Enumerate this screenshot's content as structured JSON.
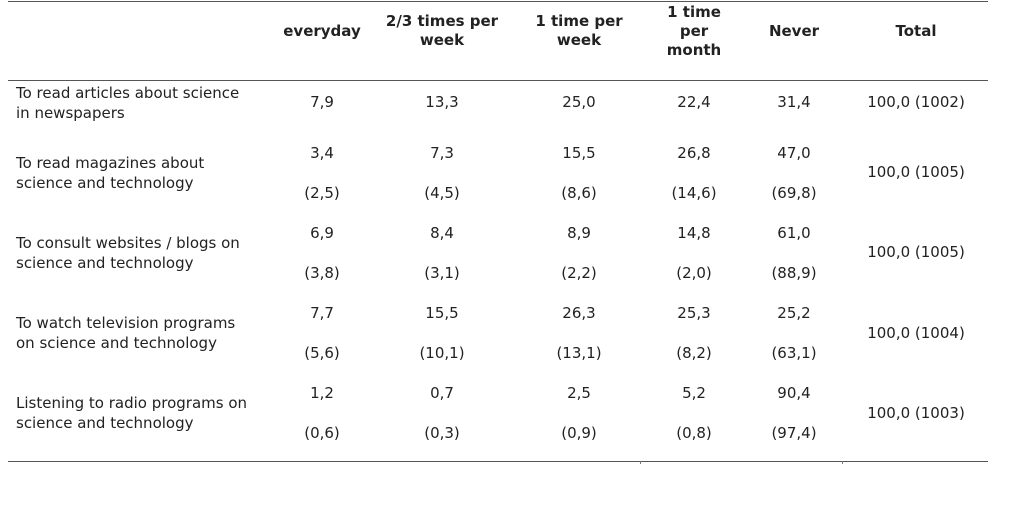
{
  "headers": [
    "everyday",
    "2/3 times per\nweek",
    "1 time per\nweek",
    "1 time\nper\nmonth",
    "Never",
    "Total"
  ],
  "rows": [
    {
      "label": "To read articles about science\nin newspapers",
      "values": [
        "7,9",
        "13,3",
        "25,0",
        "22,4",
        "31,4"
      ],
      "secondary": null,
      "total": "100,0 (1002)"
    },
    {
      "label": "To read magazines about\nscience and technology",
      "values": [
        "3,4",
        "7,3",
        "15,5",
        "26,8",
        "47,0"
      ],
      "secondary": [
        "(2,5)",
        "(4,5)",
        "(8,6)",
        "(14,6)",
        "(69,8)"
      ],
      "total": "100,0 (1005)"
    },
    {
      "label": "To consult websites / blogs on\nscience and technology",
      "values": [
        "6,9",
        "8,4",
        "8,9",
        "14,8",
        "61,0"
      ],
      "secondary": [
        "(3,8)",
        "(3,1)",
        "(2,2)",
        "(2,0)",
        "(88,9)"
      ],
      "total": "100,0 (1005)"
    },
    {
      "label": "To watch television programs\non science and technology",
      "values": [
        "7,7",
        "15,5",
        "26,3",
        "25,3",
        "25,2"
      ],
      "secondary": [
        "(5,6)",
        "(10,1)",
        "(13,1)",
        "(8,2)",
        "(63,1)"
      ],
      "total": "100,0 (1004)"
    },
    {
      "label": "Listening to radio programs on\nscience and technology",
      "values": [
        "1,2",
        "0,7",
        "2,5",
        "5,2",
        "90,4"
      ],
      "secondary": [
        "(0,6)",
        "(0,3)",
        "(0,9)",
        "(0,8)",
        "(97,4)"
      ],
      "total": "100,0 (1003)"
    }
  ]
}
